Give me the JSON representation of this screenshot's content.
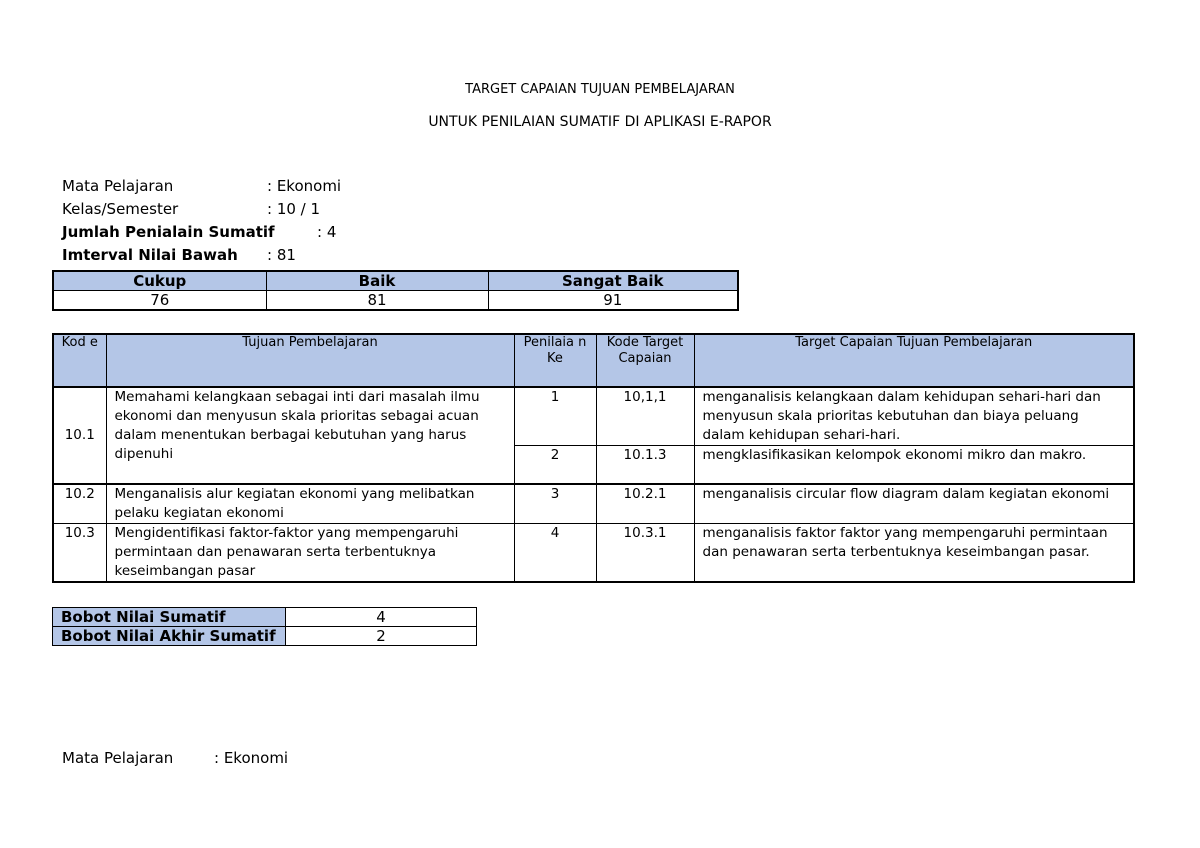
{
  "title": "TARGET CAPAIAN TUJUAN PEMBELAJARAN",
  "subtitle": "UNTUK PENILAIAN SUMATIF DI APLIKASI E-RAPOR",
  "info": [
    {
      "label": "Mata Pelajaran",
      "value": ": Ekonomi"
    },
    {
      "label": "Kelas/Semester",
      "value": ": 10 / 1"
    },
    {
      "label": "Jumlah Penialain Sumatif",
      "value": ": 4"
    },
    {
      "label": "Imterval Nilai Bawah",
      "value": ": 81"
    }
  ],
  "nilai": {
    "headers": [
      "Cukup",
      "Baik",
      "Sangat Baik"
    ],
    "values": [
      "76",
      "81",
      "91"
    ]
  },
  "table": {
    "headers": [
      "Kod e",
      "Tujuan Pembelajaran",
      "Penilaia n Ke",
      "Kode Target Capaian",
      "Target Capaian Tujuan Pembelajaran"
    ],
    "rows": [
      {
        "kode": "10.1",
        "tujuan": "Memahami kelangkaan sebagai inti dari masalah ilmu ekonomi dan menyusun skala prioritas sebagai acuan dalam menentukan berbagai kebutuhan yang harus dipenuhi",
        "sub": [
          {
            "ke": "1",
            "kt": "10,1,1",
            "target": "menganalisis kelangkaan dalam kehidupan sehari-hari dan menyusun skala prioritas kebutuhan dan biaya peluang dalam kehidupan sehari-hari."
          },
          {
            "ke": "2",
            "kt": "10.1.3",
            "target": "mengklasifikasikan kelompok ekonomi mikro dan makro."
          }
        ]
      },
      {
        "kode": "10.2",
        "tujuan": "Menganalisis alur kegiatan ekonomi yang melibatkan pelaku kegiatan ekonomi",
        "sub": [
          {
            "ke": "3",
            "kt": "10.2.1",
            "target": "menganalisis circular flow diagram dalam kegiatan ekonomi"
          }
        ]
      },
      {
        "kode": "10.3",
        "tujuan": "Mengidentifikasi faktor-faktor yang mempengaruhi permintaan dan penawaran serta terbentuknya keseimbangan pasar",
        "sub": [
          {
            "ke": "4",
            "kt": "10.3.1",
            "target": "menganalisis faktor faktor yang mempengaruhi permintaan dan penawaran serta terbentuknya keseimbangan pasar."
          }
        ]
      }
    ]
  },
  "bobot": [
    {
      "label": "Bobot Nilai Sumatif",
      "value": "4"
    },
    {
      "label": "Bobot Nilai Akhir Sumatif",
      "value": "2"
    }
  ],
  "footer": {
    "label": "Mata Pelajaran",
    "value": ": Ekonomi"
  },
  "colors": {
    "header_fill": "#b4c6e7"
  }
}
